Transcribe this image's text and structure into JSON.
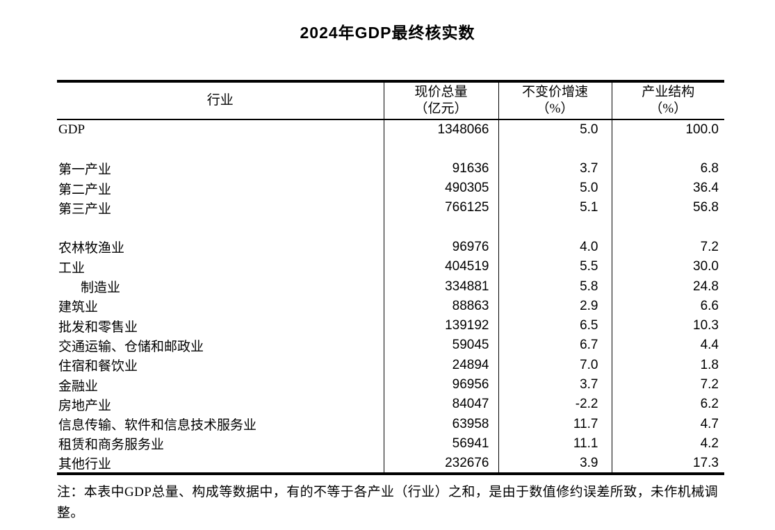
{
  "page": {
    "title": "2024年GDP最终核实数",
    "footnote": "注：本表中GDP总量、构成等数据中，有的不等于各产业（行业）之和，是由于数值修约误差所致，未作机械调整。"
  },
  "colors": {
    "text": "#000000",
    "background": "#ffffff",
    "border": "#000000"
  },
  "table": {
    "columns": [
      {
        "label": "行业",
        "sub": ""
      },
      {
        "label": "现价总量",
        "sub": "（亿元）"
      },
      {
        "label": "不变价增速",
        "sub": "（%）"
      },
      {
        "label": "产业结构",
        "sub": "（%）"
      }
    ],
    "rows": [
      {
        "industry": "GDP",
        "current_price": "1348066",
        "growth": "5.0",
        "share": "100.0",
        "indent": false
      },
      {
        "industry": "",
        "current_price": "",
        "growth": "",
        "share": "",
        "indent": false
      },
      {
        "industry": "第一产业",
        "current_price": "91636",
        "growth": "3.7",
        "share": "6.8",
        "indent": false
      },
      {
        "industry": "第二产业",
        "current_price": "490305",
        "growth": "5.0",
        "share": "36.4",
        "indent": false
      },
      {
        "industry": "第三产业",
        "current_price": "766125",
        "growth": "5.1",
        "share": "56.8",
        "indent": false
      },
      {
        "industry": "",
        "current_price": "",
        "growth": "",
        "share": "",
        "indent": false
      },
      {
        "industry": "农林牧渔业",
        "current_price": "96976",
        "growth": "4.0",
        "share": "7.2",
        "indent": false
      },
      {
        "industry": "工业",
        "current_price": "404519",
        "growth": "5.5",
        "share": "30.0",
        "indent": false
      },
      {
        "industry": "制造业",
        "current_price": "334881",
        "growth": "5.8",
        "share": "24.8",
        "indent": true
      },
      {
        "industry": "建筑业",
        "current_price": "88863",
        "growth": "2.9",
        "share": "6.6",
        "indent": false
      },
      {
        "industry": "批发和零售业",
        "current_price": "139192",
        "growth": "6.5",
        "share": "10.3",
        "indent": false
      },
      {
        "industry": "交通运输、仓储和邮政业",
        "current_price": "59045",
        "growth": "6.7",
        "share": "4.4",
        "indent": false
      },
      {
        "industry": "住宿和餐饮业",
        "current_price": "24894",
        "growth": "7.0",
        "share": "1.8",
        "indent": false
      },
      {
        "industry": "金融业",
        "current_price": "96956",
        "growth": "3.7",
        "share": "7.2",
        "indent": false
      },
      {
        "industry": "房地产业",
        "current_price": "84047",
        "growth": "-2.2",
        "share": "6.2",
        "indent": false
      },
      {
        "industry": "信息传输、软件和信息技术服务业",
        "current_price": "63958",
        "growth": "11.7",
        "share": "4.7",
        "indent": false
      },
      {
        "industry": "租赁和商务服务业",
        "current_price": "56941",
        "growth": "11.1",
        "share": "4.2",
        "indent": false
      },
      {
        "industry": "其他行业",
        "current_price": "232676",
        "growth": "3.9",
        "share": "17.3",
        "indent": false
      }
    ]
  }
}
